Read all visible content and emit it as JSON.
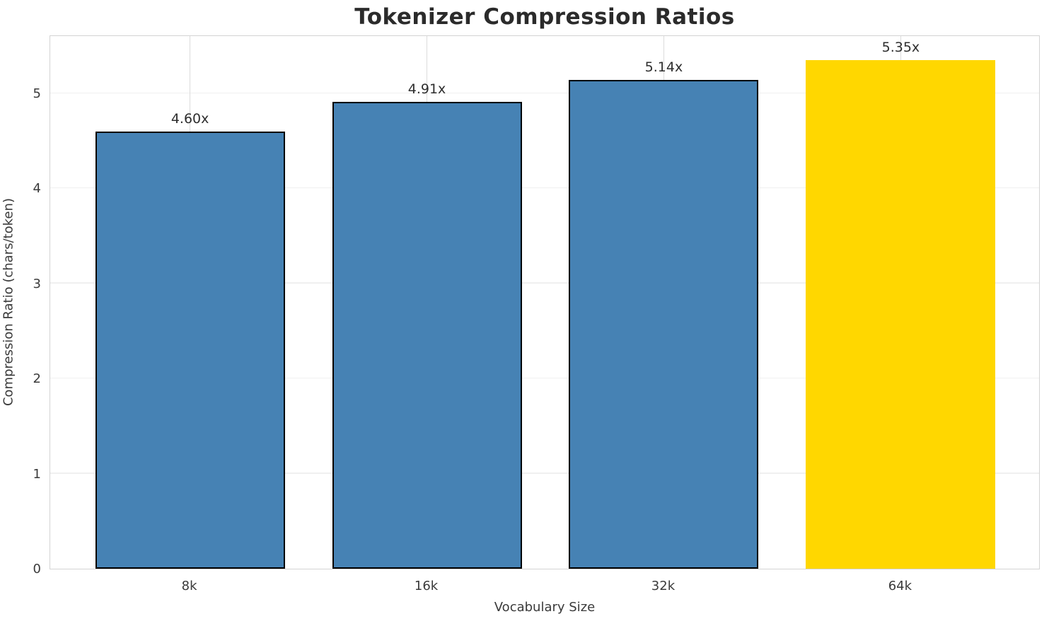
{
  "chart_data": {
    "type": "bar",
    "title": "Tokenizer Compression Ratios",
    "xlabel": "Vocabulary Size",
    "ylabel": "Compression Ratio (chars/token)",
    "categories": [
      "8k",
      "16k",
      "32k",
      "64k"
    ],
    "values": [
      4.6,
      4.91,
      5.14,
      5.35
    ],
    "bar_labels": [
      "4.60x",
      "4.91x",
      "5.14x",
      "5.35x"
    ],
    "yticks": [
      0,
      1,
      2,
      3,
      4,
      5
    ],
    "ylim": [
      0,
      5.6175
    ],
    "grid": true,
    "legend": false,
    "highlight_index": 3,
    "bar_colors": [
      "#4682B4",
      "#4682B4",
      "#4682B4",
      "#FFD700"
    ],
    "bar_edge_colors": [
      "#000000",
      "#000000",
      "#000000",
      "none"
    ]
  },
  "colors": {
    "background": "#ffffff",
    "title_text": "#2b2b2b",
    "axis_text": "#3a3a3a",
    "spine": "#d3d3d3",
    "grid_vertical": "#dcdcdc",
    "grid_horizontal": "#f0f0f0",
    "bar_blue": "#4682B4",
    "bar_gold": "#FFD700",
    "bar_edge": "#000000"
  }
}
